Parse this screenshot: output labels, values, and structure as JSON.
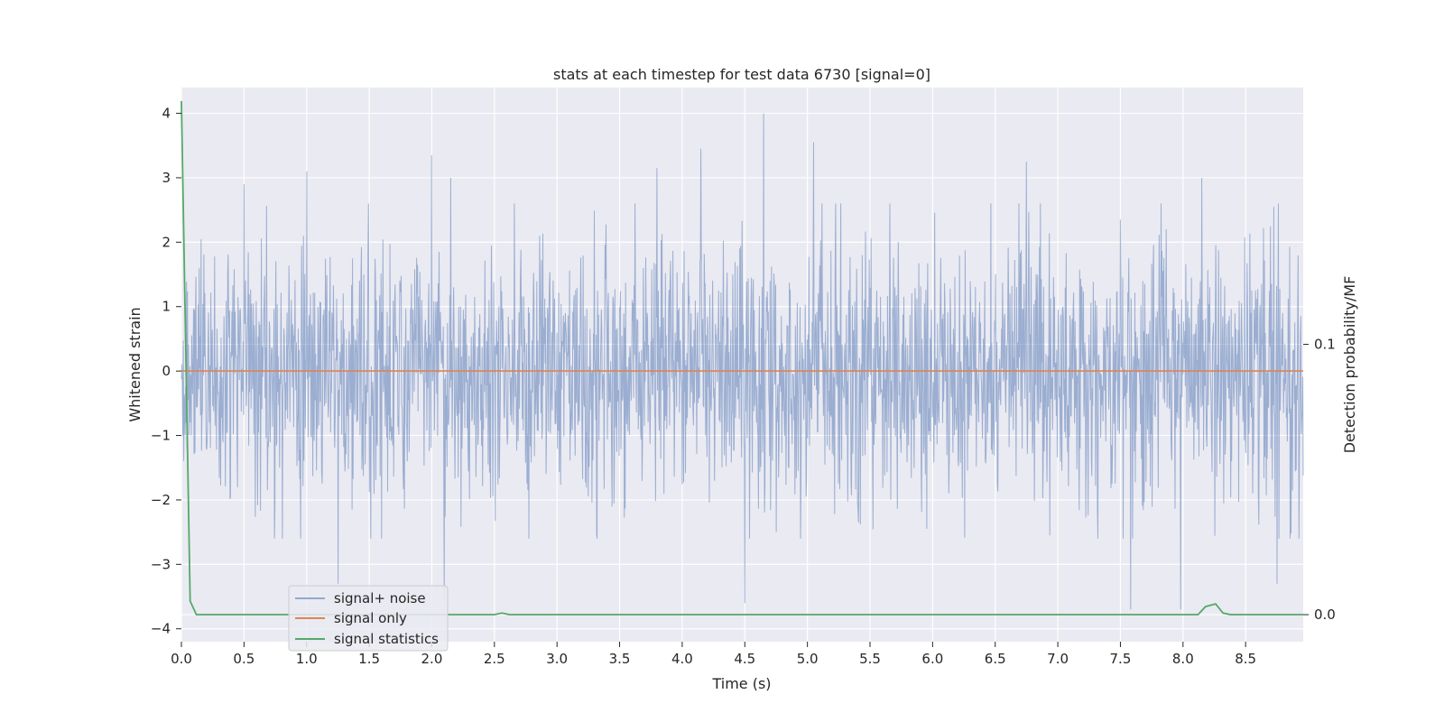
{
  "chart_data": {
    "type": "line",
    "title": "stats at each timestep for test data 6730 [signal=0]",
    "xlabel": "Time (s)",
    "ylabel": "Whitened strain",
    "y2label": "Detection probability/MF",
    "xlim": [
      0.0,
      8.96
    ],
    "ylim": [
      -4.2,
      4.4
    ],
    "y2lim": [
      -0.01,
      0.195
    ],
    "x_ticks": [
      0.0,
      0.5,
      1.0,
      1.5,
      2.0,
      2.5,
      3.0,
      3.5,
      4.0,
      4.5,
      5.0,
      5.5,
      6.0,
      6.5,
      7.0,
      7.5,
      8.0,
      8.5
    ],
    "x_tick_labels": [
      "0.0",
      "0.5",
      "1.0",
      "1.5",
      "2.0",
      "2.5",
      "3.0",
      "3.5",
      "4.0",
      "4.5",
      "5.0",
      "5.5",
      "6.0",
      "6.5",
      "7.0",
      "7.5",
      "8.0",
      "8.5"
    ],
    "y_ticks": [
      -4,
      -3,
      -2,
      -1,
      0,
      1,
      2,
      3,
      4
    ],
    "y_tick_labels": [
      "−4",
      "−3",
      "−2",
      "−1",
      "0",
      "1",
      "2",
      "3",
      "4"
    ],
    "y2_ticks": [
      0.0,
      0.1
    ],
    "y2_tick_labels": [
      "0.0",
      "0.1"
    ],
    "grid": true,
    "legend_position": "lower-left",
    "series": [
      {
        "name": "signal+ noise",
        "axis": "left",
        "color": "#4c72b0",
        "description": "dense noise strain, roughly within ±2.3 with peaks up to 4",
        "notable_peaks": [
          {
            "x": 0.5,
            "y": 2.9
          },
          {
            "x": 1.0,
            "y": 3.1
          },
          {
            "x": 2.0,
            "y": 3.35
          },
          {
            "x": 2.15,
            "y": 3.0
          },
          {
            "x": 3.8,
            "y": 3.15
          },
          {
            "x": 4.15,
            "y": 3.45
          },
          {
            "x": 4.65,
            "y": 4.0
          },
          {
            "x": 5.05,
            "y": 3.55
          },
          {
            "x": 6.75,
            "y": 3.25
          },
          {
            "x": 8.15,
            "y": 3.0
          }
        ],
        "notable_troughs": [
          {
            "x": 1.25,
            "y": -3.3
          },
          {
            "x": 2.1,
            "y": -3.55
          },
          {
            "x": 4.5,
            "y": -3.6
          },
          {
            "x": 7.58,
            "y": -3.7
          },
          {
            "x": 7.98,
            "y": -3.7
          },
          {
            "x": 8.75,
            "y": -3.3
          }
        ]
      },
      {
        "name": "signal only",
        "axis": "left",
        "color": "#dd8452",
        "x": [
          0.0,
          8.96
        ],
        "y": [
          0.0,
          0.0
        ]
      },
      {
        "name": "signal statistics",
        "axis": "right",
        "color": "#55a868",
        "x": [
          0.0,
          0.03,
          0.07,
          0.12,
          2.5,
          2.56,
          2.62,
          8.12,
          8.18,
          8.26,
          8.32,
          8.38,
          8.96
        ],
        "y": [
          0.19,
          0.11,
          0.005,
          0.0,
          0.0,
          0.0006,
          0.0,
          0.0,
          0.003,
          0.004,
          0.0006,
          0.0,
          0.0
        ]
      }
    ]
  }
}
